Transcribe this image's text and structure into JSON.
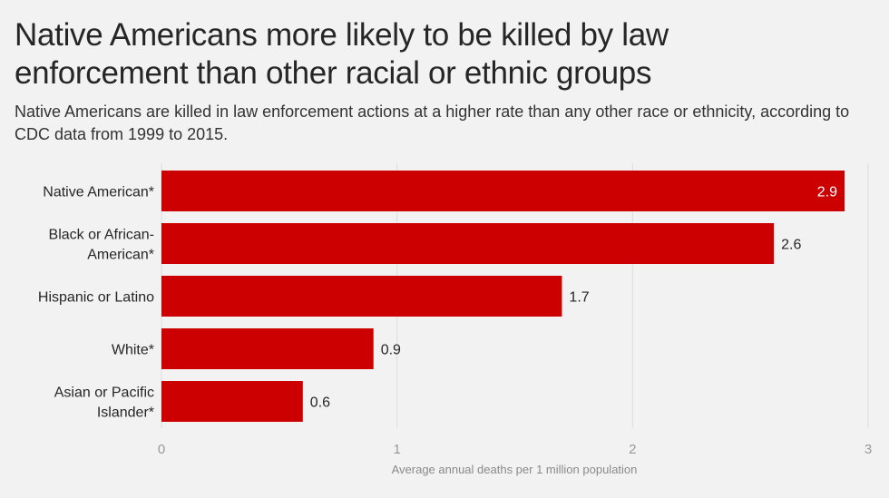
{
  "title": "Native Americans more likely to be killed by law enforcement than other racial or ethnic groups",
  "subtitle": "Native Americans are killed in law enforcement actions at a higher rate than any other race or ethnicity, according to CDC data from 1999 to 2015.",
  "colors": {
    "bar": "#cc0000",
    "grid": "#dcdcdc",
    "background": "#f2f2f2"
  },
  "chart_data": {
    "type": "bar",
    "orientation": "horizontal",
    "categories": [
      [
        "Native American*"
      ],
      [
        "Black or African-",
        "American*"
      ],
      [
        "Hispanic or Latino"
      ],
      [
        "White*"
      ],
      [
        "Asian or Pacific",
        "Islander*"
      ]
    ],
    "values": [
      2.9,
      2.6,
      1.7,
      0.9,
      0.6
    ],
    "value_labels": [
      "2.9",
      "2.6",
      "1.7",
      "0.9",
      "0.6"
    ],
    "xlabel": "Average annual deaths per 1 million population",
    "xlim": [
      0,
      3
    ],
    "xticks": [
      0,
      1,
      2,
      3
    ],
    "grid": true,
    "legend": "none"
  }
}
